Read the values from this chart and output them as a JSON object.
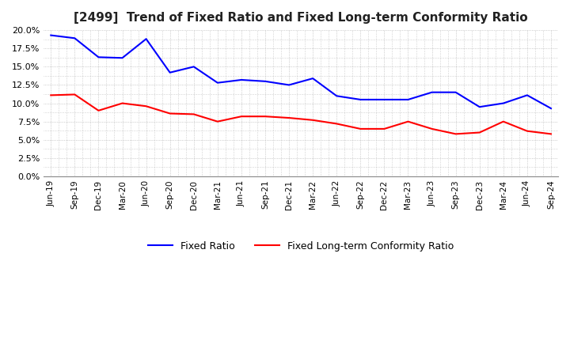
{
  "title": "[2499]  Trend of Fixed Ratio and Fixed Long-term Conformity Ratio",
  "x_labels": [
    "Jun-19",
    "Sep-19",
    "Dec-19",
    "Mar-20",
    "Jun-20",
    "Sep-20",
    "Dec-20",
    "Mar-21",
    "Jun-21",
    "Sep-21",
    "Dec-21",
    "Mar-22",
    "Jun-22",
    "Sep-22",
    "Dec-22",
    "Mar-23",
    "Jun-23",
    "Sep-23",
    "Dec-23",
    "Mar-24",
    "Jun-24",
    "Sep-24"
  ],
  "fixed_ratio": [
    19.3,
    18.9,
    16.3,
    16.2,
    18.8,
    14.2,
    15.0,
    12.8,
    13.2,
    13.0,
    12.5,
    13.4,
    11.0,
    10.5,
    10.5,
    10.5,
    11.5,
    11.5,
    9.5,
    10.0,
    11.1,
    9.3
  ],
  "fixed_lt_ratio": [
    11.1,
    11.2,
    9.0,
    10.0,
    9.6,
    8.6,
    8.5,
    7.5,
    8.2,
    8.2,
    8.0,
    7.7,
    7.2,
    6.5,
    6.5,
    7.5,
    6.5,
    5.8,
    6.0,
    7.5,
    6.2,
    5.8
  ],
  "fixed_ratio_color": "#0000ff",
  "fixed_lt_ratio_color": "#ff0000",
  "ylim": [
    0.0,
    20.0
  ],
  "yticks": [
    0.0,
    2.5,
    5.0,
    7.5,
    10.0,
    12.5,
    15.0,
    17.5,
    20.0
  ],
  "background_color": "#ffffff",
  "grid_color": "#aaaaaa",
  "title_fontsize": 11,
  "title_color": "#222222",
  "line_width": 1.5,
  "legend_fontsize": 9
}
